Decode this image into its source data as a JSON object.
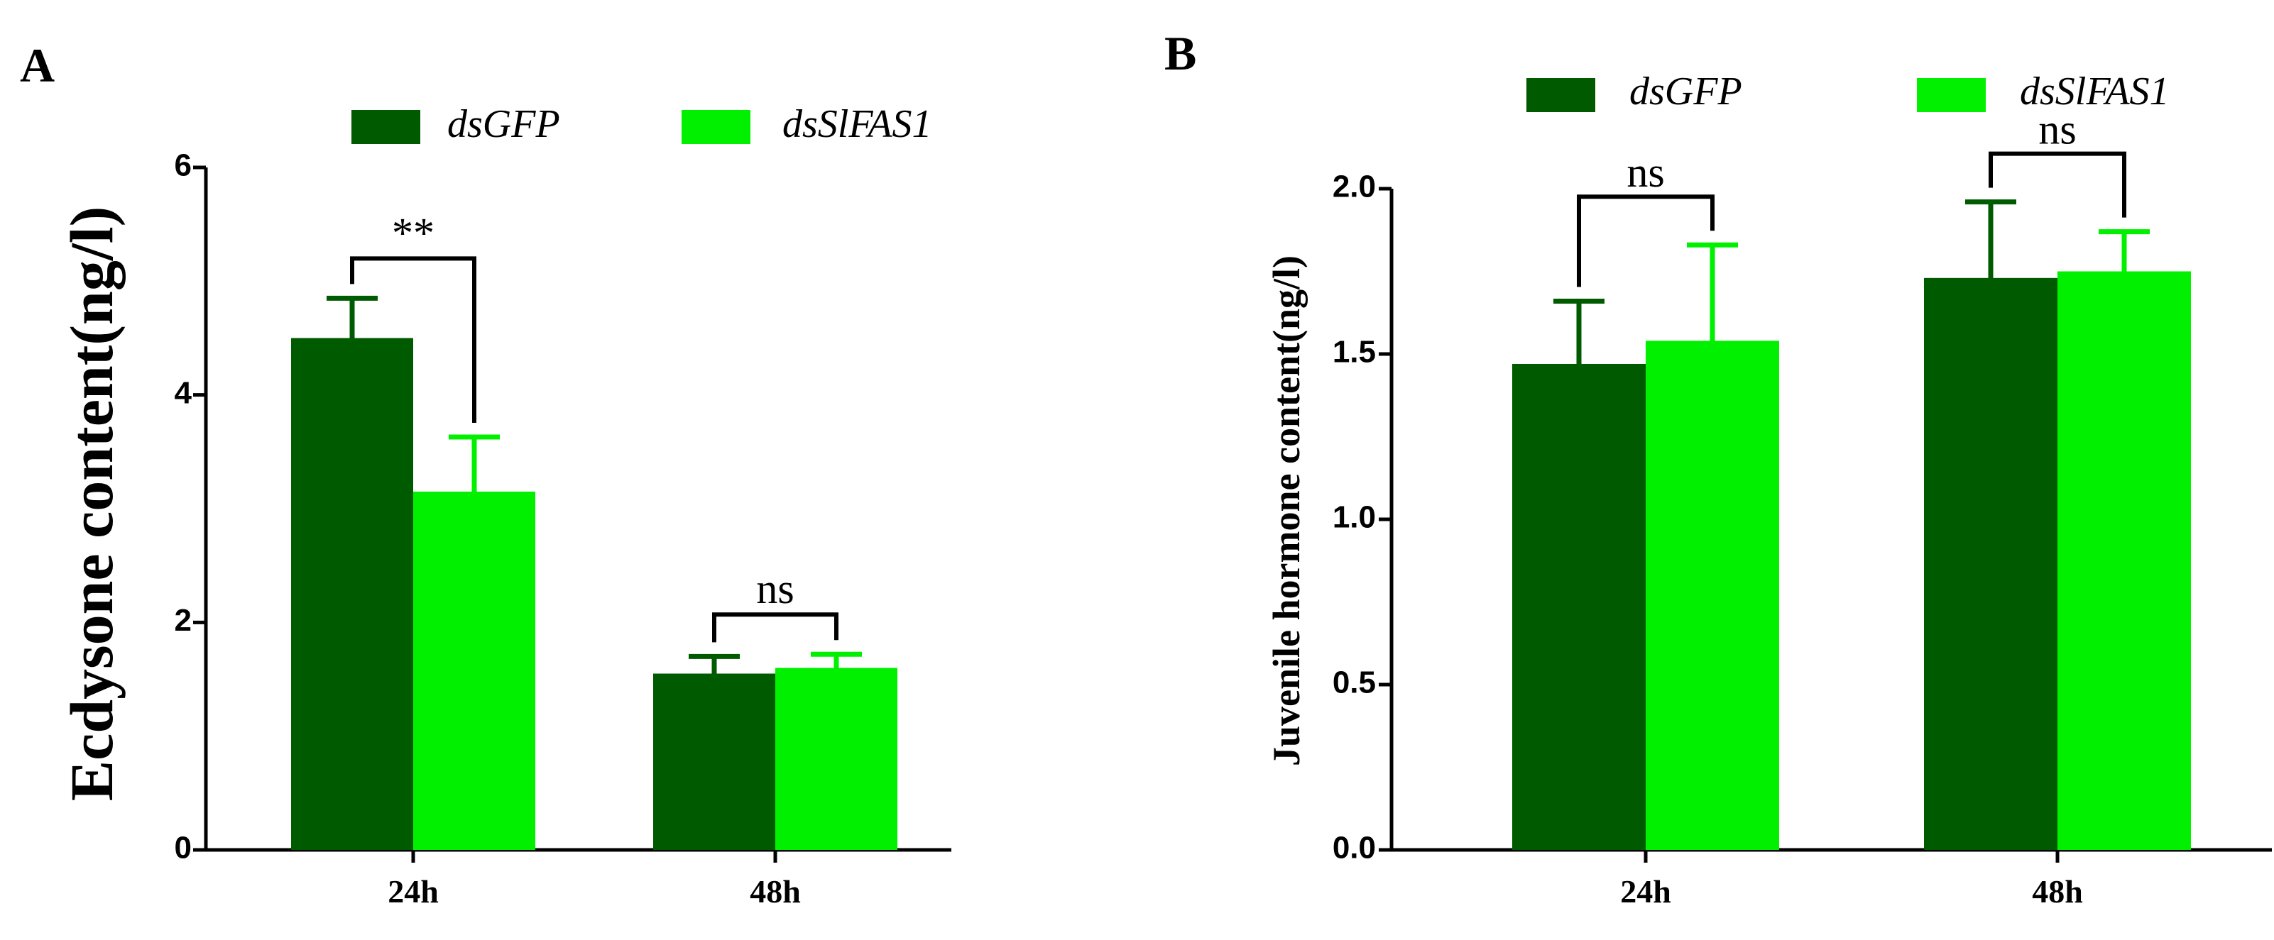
{
  "colors": {
    "dsGFP": "#005a00",
    "dsSlFAS1": "#00f000",
    "axis": "#000000"
  },
  "chart_data": [
    {
      "panel": "A",
      "type": "bar",
      "title": "",
      "xlabel": "",
      "ylabel": "Ecdysone content(ng/l)",
      "categories": [
        "24h",
        "48h"
      ],
      "ylim": [
        0,
        6
      ],
      "yticks": [
        "0",
        "2",
        "4",
        "6"
      ],
      "legend": [
        "dsGFP",
        "dsSlFAS1"
      ],
      "legend_position": "top",
      "grid": false,
      "series": [
        {
          "name": "dsGFP",
          "values": [
            4.5,
            1.55
          ],
          "errors": [
            0.35,
            0.15
          ]
        },
        {
          "name": "dsSlFAS1",
          "values": [
            3.15,
            1.6
          ],
          "errors": [
            0.48,
            0.12
          ]
        }
      ],
      "significance": [
        "**",
        "ns"
      ]
    },
    {
      "panel": "B",
      "type": "bar",
      "title": "",
      "xlabel": "",
      "ylabel": "Juvenile hormone content(ng/l)",
      "categories": [
        "24h",
        "48h"
      ],
      "ylim": [
        0,
        2.0
      ],
      "yticks": [
        "0.0",
        "0.5",
        "1.0",
        "1.5",
        "2.0"
      ],
      "legend": [
        "dsGFP",
        "dsSlFAS1"
      ],
      "legend_position": "top",
      "grid": false,
      "series": [
        {
          "name": "dsGFP",
          "values": [
            1.47,
            1.73
          ],
          "errors": [
            0.19,
            0.23
          ]
        },
        {
          "name": "dsSlFAS1",
          "values": [
            1.54,
            1.75
          ],
          "errors": [
            0.29,
            0.12
          ]
        }
      ],
      "significance": [
        "ns",
        "ns"
      ]
    }
  ]
}
